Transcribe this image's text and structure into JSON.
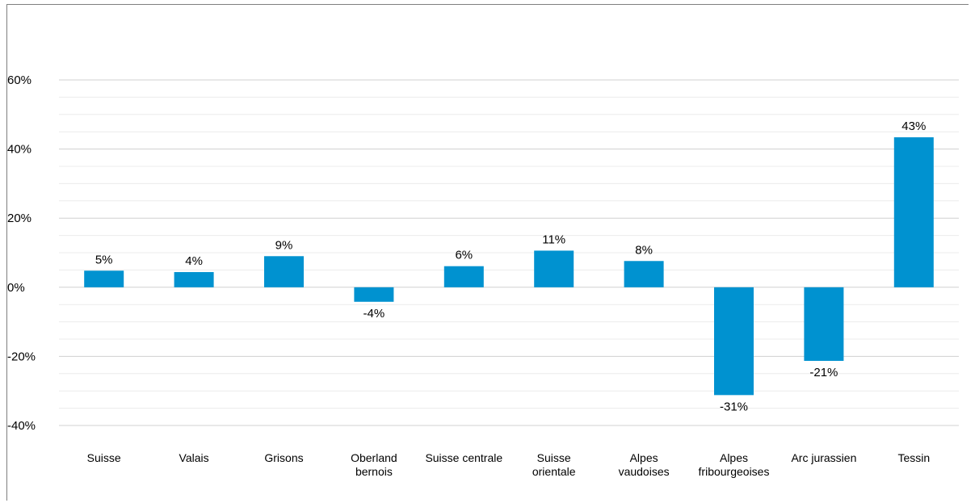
{
  "chart_data": {
    "type": "bar",
    "categories": [
      [
        "Suisse"
      ],
      [
        "Valais"
      ],
      [
        "Grisons"
      ],
      [
        "Oberland",
        "bernois"
      ],
      [
        "Suisse centrale"
      ],
      [
        "Suisse",
        "orientale"
      ],
      [
        "Alpes",
        "vaudoises"
      ],
      [
        "Alpes",
        "fribourgeoises"
      ],
      [
        "Arc jurassien"
      ],
      [
        "Tessin"
      ]
    ],
    "values": [
      4.8,
      4.4,
      9.0,
      -4.2,
      6.1,
      10.6,
      7.6,
      -31.2,
      -21.3,
      43.4
    ],
    "data_labels": [
      "5%",
      "4%",
      "9%",
      "-4%",
      "6%",
      "11%",
      "8%",
      "-31%",
      "-21%",
      "43%"
    ],
    "title": "",
    "xlabel": "",
    "ylabel": "",
    "ylim": [
      -40,
      60
    ],
    "yticks": [
      -40,
      -20,
      0,
      20,
      40,
      60
    ],
    "ytick_labels": [
      "-40%",
      "-20%",
      "0%",
      "20%",
      "40%",
      "60%"
    ],
    "grid": true,
    "legend": "none",
    "bar_color": "#0092d0",
    "grid_color": "#d9d9d9"
  }
}
